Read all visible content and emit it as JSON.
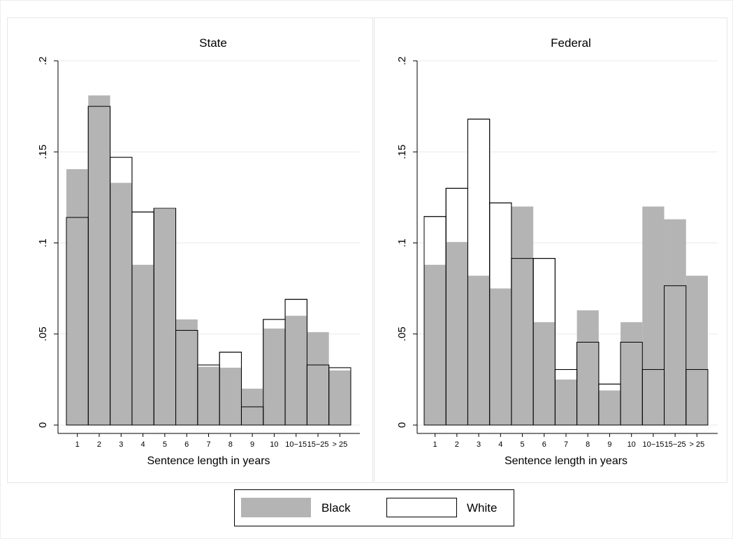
{
  "chart_data": [
    {
      "type": "bar",
      "title": "State",
      "xlabel": "Sentence length in years",
      "categories": [
        "1",
        "2",
        "3",
        "4",
        "5",
        "6",
        "7",
        "8",
        "9",
        "10",
        "10−15",
        "15−25",
        "> 25"
      ],
      "series": [
        {
          "name": "Black",
          "color": "#b4b4b4",
          "values": [
            0.1405,
            0.181,
            0.133,
            0.088,
            0.1186,
            0.058,
            0.032,
            0.0315,
            0.02,
            0.053,
            0.06,
            0.051,
            0.03
          ]
        },
        {
          "name": "White",
          "color": "#ffffff",
          "values": [
            0.114,
            0.175,
            0.147,
            0.117,
            0.119,
            0.052,
            0.033,
            0.04,
            0.01,
            0.058,
            0.069,
            0.033,
            0.0315
          ]
        }
      ],
      "ylim": [
        0,
        0.2
      ],
      "yticks": [
        0,
        {
          "value": 0.05,
          "label": ".05"
        },
        {
          "value": 0.1,
          "label": ".1"
        },
        {
          "value": 0.15,
          "label": ".15"
        },
        {
          "value": 0.2,
          "label": ".2"
        }
      ],
      "grid": true
    },
    {
      "type": "bar",
      "title": "Federal",
      "xlabel": "Sentence length in years",
      "categories": [
        "1",
        "2",
        "3",
        "4",
        "5",
        "6",
        "7",
        "8",
        "9",
        "10",
        "10−15",
        "15−25",
        "> 25"
      ],
      "series": [
        {
          "color": "#b4b4b4",
          "values": [
            0.088,
            0.1005,
            0.082,
            0.075,
            0.12,
            0.0565,
            0.025,
            0.063,
            0.019,
            0.0565,
            0.12,
            0.113,
            0.082
          ]
        },
        {
          "color": "#ffffff",
          "values": [
            0.1145,
            0.13,
            0.168,
            0.122,
            0.0915,
            0.0915,
            0.0305,
            0.0455,
            0.0225,
            0.0455,
            0.0305,
            0.0765,
            0.0305
          ]
        }
      ],
      "ylim": [
        0,
        0.2
      ],
      "yticks": [
        0,
        {
          "value": 0.05,
          "label": ".05"
        },
        {
          "value": 0.1,
          "label": ".1"
        },
        {
          "value": 0.15,
          "label": ".15"
        },
        {
          "value": 0.2,
          "label": ".2"
        }
      ],
      "grid": true
    }
  ]
}
